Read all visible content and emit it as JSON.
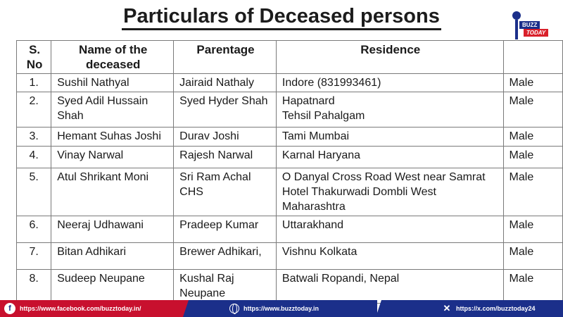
{
  "title": "Particulars of Deceased persons",
  "logo": {
    "top": "BUZZ",
    "bottom": "TODAY"
  },
  "table": {
    "headers": [
      "S. No",
      "Name of the deceased",
      "Parentage",
      "Residence",
      ""
    ],
    "rows": [
      {
        "sno": "1.",
        "name": "Sushil Nathyal",
        "parentage": "Jairaid Nathaly",
        "residence": "Indore (831993461)",
        "gender": "Male"
      },
      {
        "sno": "2.",
        "name": "Syed Adil Hussain Shah",
        "parentage": "Syed Hyder Shah",
        "residence": "Hapatnard\nTehsil Pahalgam",
        "gender": "Male"
      },
      {
        "sno": "3.",
        "name": "Hemant Suhas Joshi",
        "parentage": "Durav Joshi",
        "residence": "Tami Mumbai",
        "gender": "Male"
      },
      {
        "sno": "4.",
        "name": "Vinay Narwal",
        "parentage": "Rajesh Narwal",
        "residence": "Karnal Haryana",
        "gender": "Male"
      },
      {
        "sno": "5.",
        "name": "Atul Shrikant Moni",
        "parentage": "Sri Ram Achal CHS",
        "residence": "O Danyal Cross Road West near Samrat Hotel Thakurwadi Dombli West Maharashtra",
        "gender": "Male"
      },
      {
        "sno": "6.",
        "name": "Neeraj Udhawani",
        "parentage": "Pradeep Kumar",
        "residence": "Uttarakhand",
        "gender": "Male"
      },
      {
        "sno": "7.",
        "name": "Bitan Adhikari",
        "parentage": "Brewer Adhikari,",
        "residence": "Vishnu Kolkata",
        "gender": "Male"
      },
      {
        "sno": "8.",
        "name": "Sudeep Neupane",
        "parentage": "Kushal Raj Neupane",
        "residence": "Batwali Ropandi, Nepal",
        "gender": "Male"
      }
    ]
  },
  "footer": {
    "facebook": "https://www.facebook.com/buzztoday.in/",
    "website": "https://www.buzztoday.in",
    "x": "https://x.com/buzztoday24"
  },
  "icons": {
    "facebook": "facebook-icon",
    "website": "globe-icon",
    "x": "x-icon",
    "logo": "microphone-icon"
  },
  "colors": {
    "red": "#c8102e",
    "navy": "#1b2f8a"
  }
}
